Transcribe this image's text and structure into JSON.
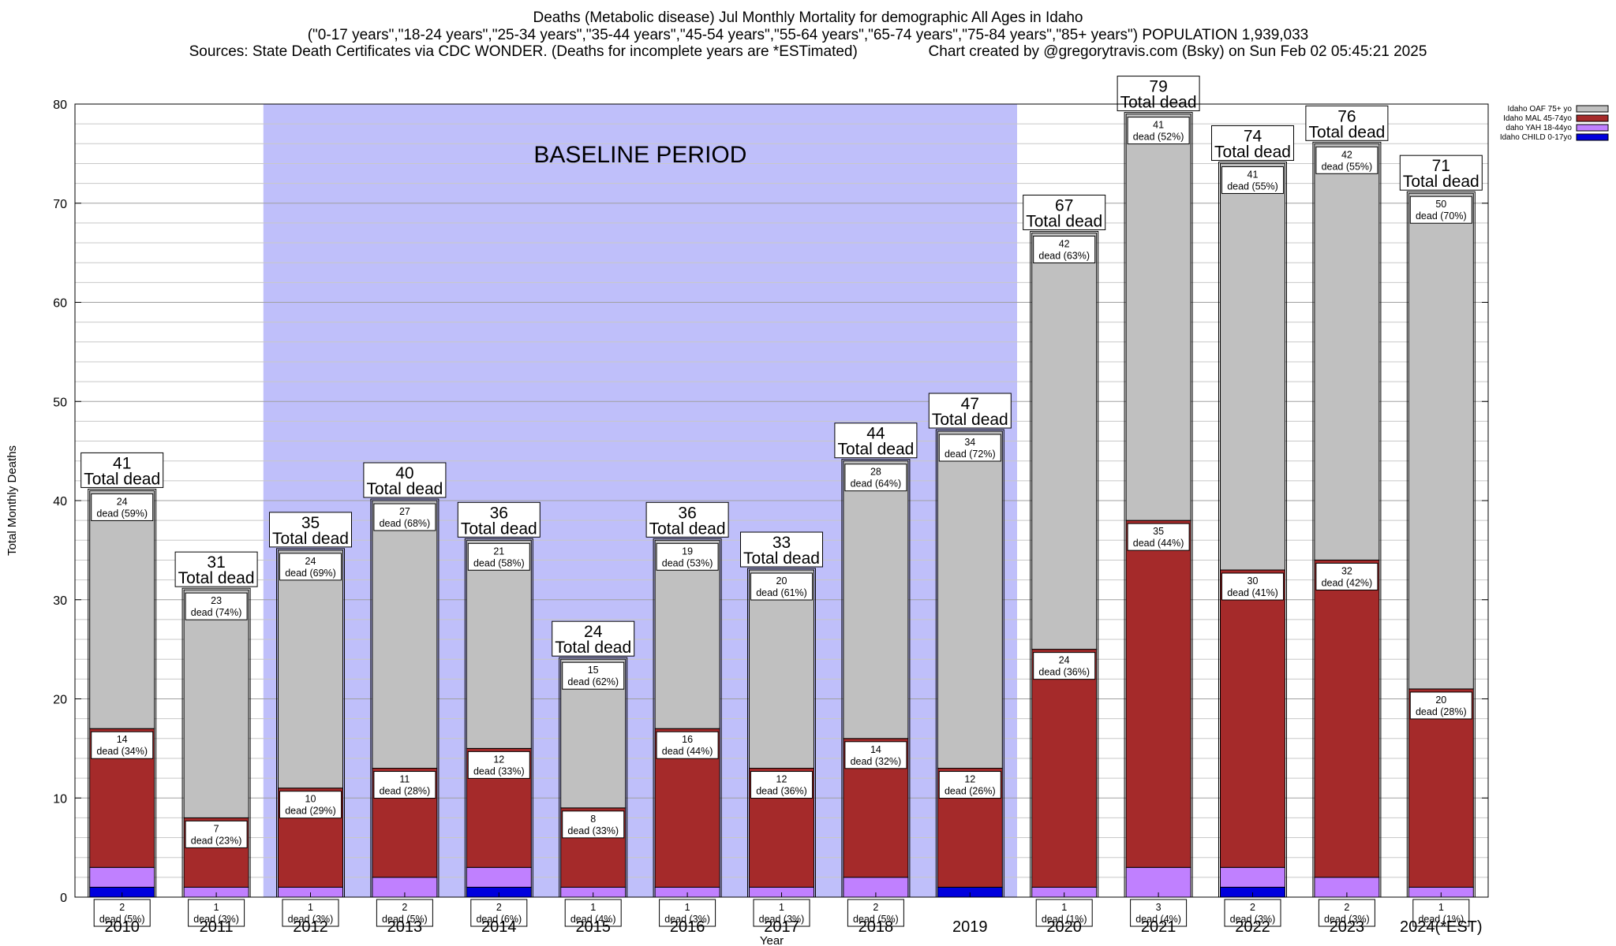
{
  "title": {
    "line1": "Deaths (Metabolic disease) Jul Monthly Mortality for demographic All Ages in Idaho",
    "line2": "(\"0-17 years\",\"18-24 years\",\"25-34 years\",\"35-44 years\",\"45-54 years\",\"55-64 years\",\"65-74 years\",\"75-84 years\",\"85+ years\") POPULATION 1,939,033",
    "line3": "Sources: State Death Certificates via CDC WONDER. (Deaths for incomplete years are *ESTimated)                 Chart created by @gregorytravis.com (Bsky) on Sun Feb 02 05:45:21 2025"
  },
  "chart_data": {
    "type": "bar",
    "stacked": true,
    "xlabel": "Year",
    "ylabel": "Total Monthly Deaths",
    "ylim": [
      0,
      80
    ],
    "yticks": [
      0,
      10,
      20,
      30,
      40,
      50,
      60,
      70,
      80
    ],
    "grid": true,
    "legend_position": "top-right",
    "baseline_label": "BASELINE PERIOD",
    "baseline_range": [
      "2012",
      "2019"
    ],
    "categories": [
      "2010",
      "2011",
      "2012",
      "2013",
      "2014",
      "2015",
      "2016",
      "2017",
      "2018",
      "2019",
      "2020",
      "2021",
      "2022",
      "2023",
      "2024(*EST)"
    ],
    "series": [
      {
        "name": "Idaho CHILD 0-17yo",
        "color": "#0000dd",
        "values": [
          1,
          0,
          0,
          0,
          1,
          0,
          0,
          0,
          0,
          1,
          0,
          0,
          1,
          0,
          0
        ]
      },
      {
        "name": "daho YAH 18-44yo",
        "color": "#c080ff",
        "values": [
          2,
          1,
          1,
          2,
          2,
          1,
          1,
          1,
          2,
          0,
          1,
          3,
          2,
          2,
          1
        ],
        "labels": [
          "2\ndead (5%)",
          "1\ndead (3%)",
          "1\ndead (3%)",
          "2\ndead (5%)",
          "2\ndead (6%)",
          "1\ndead (4%)",
          "1\ndead (3%)",
          "1\ndead (3%)",
          "2\ndead (5%)",
          "",
          "1\ndead (1%)",
          "3\ndead (4%)",
          "2\ndead (3%)",
          "2\ndead (3%)",
          "1\ndead (1%)"
        ]
      },
      {
        "name": "Idaho MAL 45-74yo",
        "color": "#a52a2a",
        "values": [
          14,
          7,
          10,
          11,
          12,
          8,
          16,
          12,
          14,
          12,
          24,
          35,
          30,
          32,
          20
        ],
        "labels": [
          "14\ndead (34%)",
          "7\ndead (23%)",
          "10\ndead (29%)",
          "11\ndead (28%)",
          "12\ndead (33%)",
          "8\ndead (33%)",
          "16\ndead (44%)",
          "12\ndead (36%)",
          "14\ndead (32%)",
          "12\ndead (26%)",
          "24\ndead (36%)",
          "35\ndead (44%)",
          "30\ndead (41%)",
          "32\ndead (42%)",
          "20\ndead (28%)"
        ]
      },
      {
        "name": "Idaho OAF 75+ yo",
        "color": "#c0c0c0",
        "values": [
          24,
          23,
          24,
          27,
          21,
          15,
          19,
          20,
          28,
          34,
          42,
          41,
          41,
          42,
          50
        ],
        "labels": [
          "24\ndead (59%)",
          "23\ndead (74%)",
          "24\ndead (69%)",
          "27\ndead (68%)",
          "21\ndead (58%)",
          "15\ndead (62%)",
          "19\ndead (53%)",
          "20\ndead (61%)",
          "28\ndead (64%)",
          "34\ndead (72%)",
          "42\ndead (63%)",
          "41\ndead (52%)",
          "41\ndead (55%)",
          "42\ndead (55%)",
          "50\ndead (70%)"
        ]
      }
    ],
    "totals": [
      41,
      31,
      35,
      40,
      36,
      24,
      36,
      33,
      44,
      47,
      67,
      79,
      74,
      76,
      71
    ],
    "total_label_suffix": "Total dead",
    "legend_order": [
      "Idaho OAF 75+ yo",
      "Idaho MAL 45-74yo",
      "daho YAH 18-44yo",
      "Idaho CHILD 0-17yo"
    ]
  }
}
